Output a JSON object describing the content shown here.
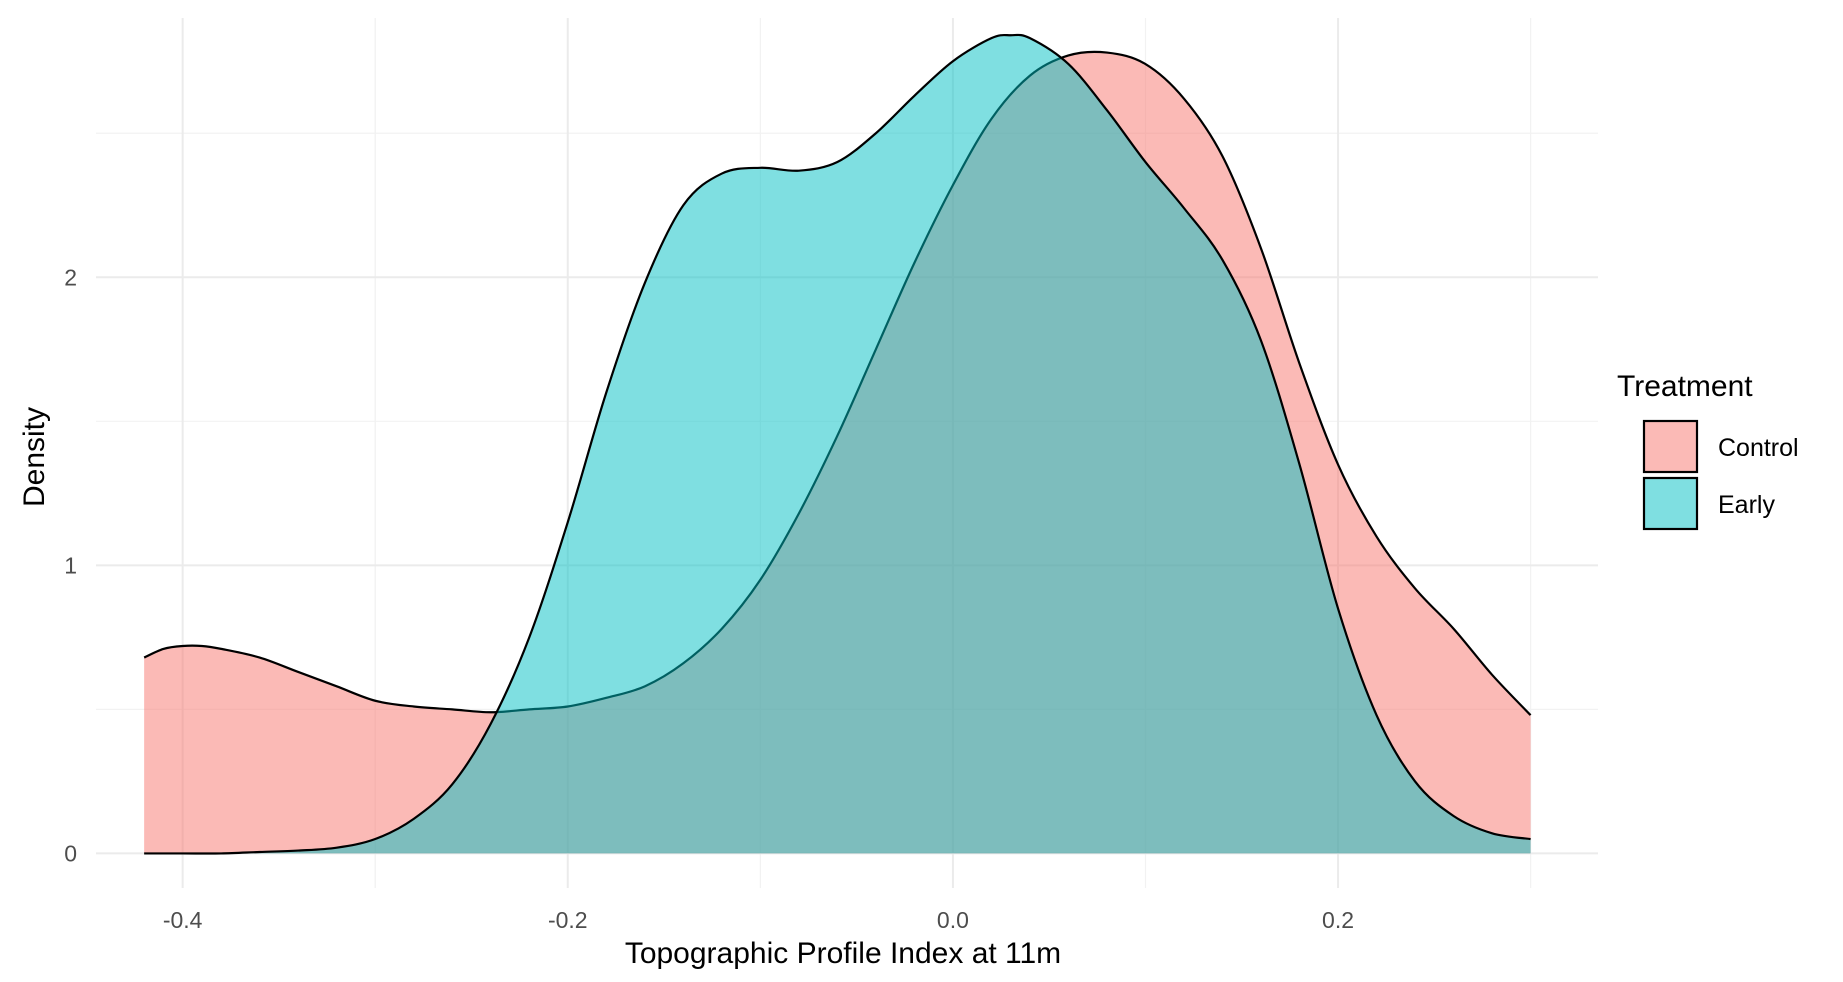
{
  "chart_data": {
    "type": "area",
    "subtype": "density",
    "xlabel": "Topographic Profile Index at 11m",
    "ylabel": "Density",
    "xlim": [
      -0.445,
      0.335
    ],
    "ylim": [
      -0.12,
      2.9
    ],
    "x_ticks": [
      -0.4,
      -0.2,
      0.0,
      0.2
    ],
    "x_tick_labels": [
      "-0.4",
      "-0.2",
      "0.0",
      "0.2"
    ],
    "y_ticks": [
      0,
      1,
      2
    ],
    "y_tick_labels": [
      "0",
      "1",
      "2"
    ],
    "grid": true,
    "legend": {
      "title": "Treatment",
      "position": "right",
      "entries": [
        "Control",
        "Early"
      ]
    },
    "series": [
      {
        "name": "Control",
        "color": "#F8766D",
        "x": [
          -0.42,
          -0.41,
          -0.4,
          -0.39,
          -0.38,
          -0.36,
          -0.34,
          -0.32,
          -0.3,
          -0.28,
          -0.26,
          -0.24,
          -0.22,
          -0.2,
          -0.18,
          -0.16,
          -0.14,
          -0.12,
          -0.1,
          -0.08,
          -0.06,
          -0.04,
          -0.02,
          0.0,
          0.02,
          0.04,
          0.06,
          0.08,
          0.1,
          0.12,
          0.14,
          0.16,
          0.18,
          0.2,
          0.22,
          0.24,
          0.26,
          0.28,
          0.3
        ],
        "values": [
          0.68,
          0.71,
          0.72,
          0.72,
          0.71,
          0.68,
          0.63,
          0.58,
          0.53,
          0.51,
          0.5,
          0.49,
          0.5,
          0.51,
          0.54,
          0.58,
          0.66,
          0.78,
          0.95,
          1.18,
          1.45,
          1.75,
          2.05,
          2.32,
          2.55,
          2.7,
          2.77,
          2.78,
          2.74,
          2.62,
          2.42,
          2.1,
          1.7,
          1.35,
          1.1,
          0.92,
          0.78,
          0.62,
          0.48
        ]
      },
      {
        "name": "Early",
        "color": "#00BFC4",
        "x": [
          -0.42,
          -0.4,
          -0.38,
          -0.36,
          -0.34,
          -0.32,
          -0.3,
          -0.28,
          -0.26,
          -0.24,
          -0.22,
          -0.2,
          -0.18,
          -0.16,
          -0.14,
          -0.12,
          -0.1,
          -0.08,
          -0.06,
          -0.04,
          -0.02,
          0.0,
          0.02,
          0.03,
          0.04,
          0.06,
          0.08,
          0.1,
          0.12,
          0.14,
          0.16,
          0.18,
          0.2,
          0.22,
          0.24,
          0.26,
          0.28,
          0.3
        ],
        "values": [
          0.0,
          0.0,
          0.0,
          0.005,
          0.01,
          0.02,
          0.05,
          0.12,
          0.24,
          0.45,
          0.75,
          1.15,
          1.6,
          1.98,
          2.25,
          2.36,
          2.38,
          2.37,
          2.4,
          2.5,
          2.63,
          2.75,
          2.83,
          2.84,
          2.83,
          2.74,
          2.58,
          2.4,
          2.24,
          2.06,
          1.78,
          1.35,
          0.85,
          0.48,
          0.25,
          0.13,
          0.07,
          0.05
        ]
      }
    ]
  }
}
